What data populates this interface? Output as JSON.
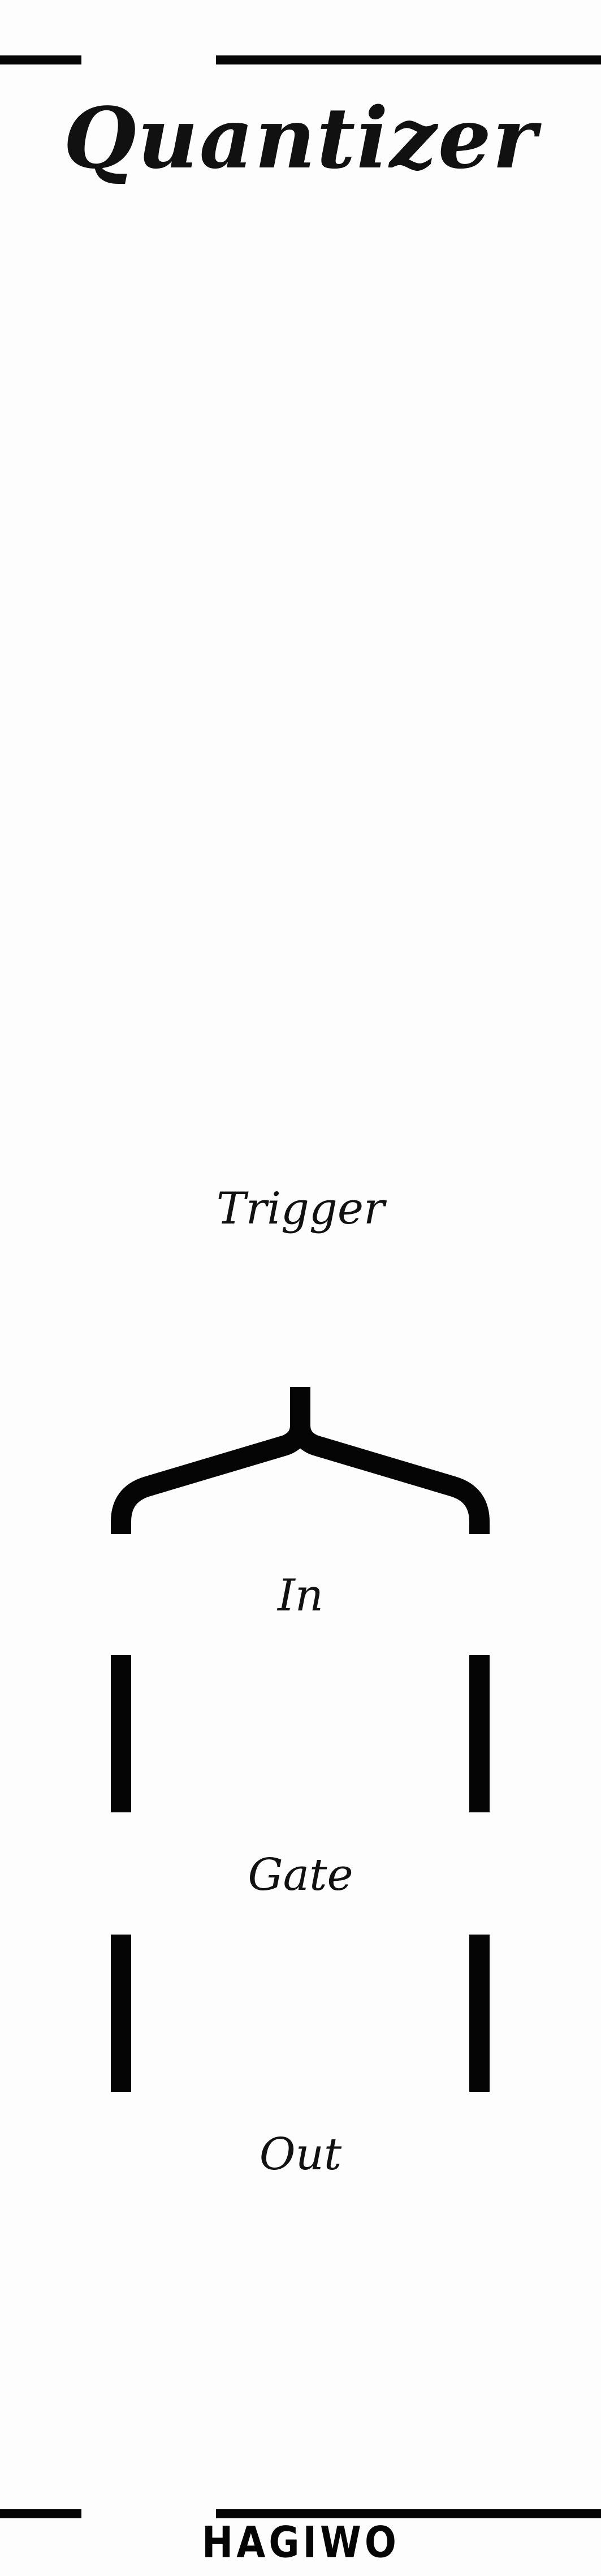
{
  "panel": {
    "title": "Quantizer",
    "brand": "HAGIWO",
    "jacks": [
      {
        "label": "Trigger"
      },
      {
        "label": "In"
      },
      {
        "label": "Gate"
      },
      {
        "label": "Out"
      }
    ]
  },
  "colors": {
    "background": "#fdfdfd",
    "ink": "#050505"
  }
}
